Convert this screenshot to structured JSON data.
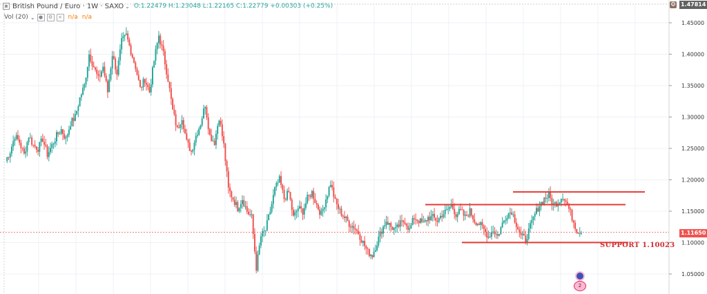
{
  "legend": {
    "symbol": "British Pound / Euro · 1W · SAXO",
    "ohlc": "O:1.22479  H:1.23048  L:1.22165  C:1.22779  +0.00303 (+0.25%)",
    "vol_label": "Vol (20)",
    "vol_value_1": "n/a",
    "vol_value_2": "n/a"
  },
  "badges": {
    "top": "1.47814",
    "current": "1.11650"
  },
  "annotation": {
    "support_text": "SUPPORT 1.10023"
  },
  "event_flag_count": "2",
  "colors": {
    "up": "#26a69a",
    "down": "#ef5350",
    "line": "#e53935",
    "grid": "#eef1f4",
    "current_price": "#ef5350"
  },
  "chart_data": {
    "type": "candlestick",
    "title": "British Pound / Euro · 1W · SAXO",
    "ylim": [
      1.03,
      1.46
    ],
    "y_ticks": [
      1.05,
      1.1,
      1.15,
      1.2,
      1.25,
      1.3,
      1.35,
      1.4,
      1.45
    ],
    "y_tick_labels": [
      "1.05000",
      "1.10000",
      "1.15000",
      "1.20000",
      "1.25000",
      "1.30000",
      "1.35000",
      "1.40000",
      "1.45000"
    ],
    "close_path": [
      1.23,
      1.245,
      1.27,
      1.26,
      1.24,
      1.27,
      1.255,
      1.25,
      1.265,
      1.24,
      1.255,
      1.27,
      1.28,
      1.265,
      1.29,
      1.3,
      1.33,
      1.35,
      1.4,
      1.38,
      1.36,
      1.38,
      1.34,
      1.4,
      1.37,
      1.42,
      1.43,
      1.405,
      1.38,
      1.345,
      1.36,
      1.34,
      1.39,
      1.43,
      1.4,
      1.36,
      1.31,
      1.28,
      1.3,
      1.26,
      1.245,
      1.27,
      1.29,
      1.32,
      1.27,
      1.26,
      1.3,
      1.255,
      1.185,
      1.17,
      1.155,
      1.17,
      1.15,
      1.14,
      1.06,
      1.11,
      1.12,
      1.15,
      1.185,
      1.2,
      1.17,
      1.18,
      1.14,
      1.155,
      1.15,
      1.17,
      1.18,
      1.16,
      1.145,
      1.17,
      1.195,
      1.165,
      1.15,
      1.14,
      1.13,
      1.125,
      1.115,
      1.1,
      1.085,
      1.08,
      1.1,
      1.12,
      1.135,
      1.125,
      1.12,
      1.13,
      1.135,
      1.12,
      1.14,
      1.135,
      1.13,
      1.14,
      1.14,
      1.135,
      1.145,
      1.15,
      1.16,
      1.145,
      1.15,
      1.14,
      1.15,
      1.135,
      1.13,
      1.12,
      1.11,
      1.12,
      1.11,
      1.13,
      1.145,
      1.15,
      1.13,
      1.11,
      1.105,
      1.125,
      1.145,
      1.16,
      1.17,
      1.175,
      1.16,
      1.165,
      1.175,
      1.16,
      1.14,
      1.12,
      1.115
    ],
    "horizontal_lines": [
      {
        "y": 1.1807,
        "label": ""
      },
      {
        "y": 1.1605,
        "label": ""
      },
      {
        "y": 1.1002,
        "label": "SUPPORT 1.10023"
      }
    ],
    "current_price": 1.1165,
    "grid": true
  }
}
